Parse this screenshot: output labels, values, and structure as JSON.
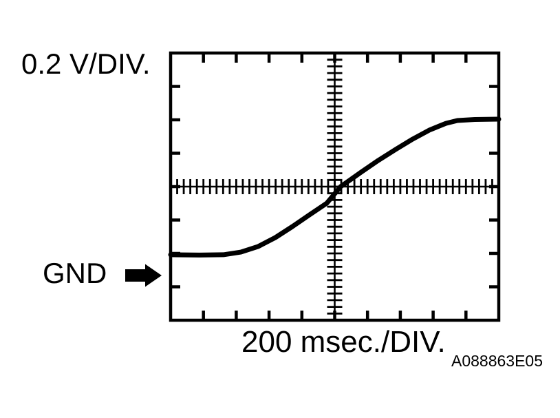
{
  "labels": {
    "volts_per_div": "0.2 V/DIV.",
    "gnd": "GND",
    "time_per_div": "200 msec./DIV.",
    "figure_code": "A088863E05"
  },
  "colors": {
    "ink": "#000000",
    "background": "#ffffff"
  },
  "chart_data": {
    "type": "line",
    "instrument": "oscilloscope",
    "title": "",
    "y_scale_label": "0.2 V/DIV.",
    "x_scale_label": "200 msec./DIV.",
    "volts_per_division": 0.2,
    "msec_per_division": 200,
    "h_divisions": 10,
    "v_divisions": 8,
    "minor_ticks_per_division": 5,
    "grid": "crosshair-graticule-with-edge-ticks",
    "gnd_marker": "arrow at left edge, two divisions below center",
    "low_level_volts": -0.41,
    "high_level_volts": 0.4,
    "x_range_div": [
      0,
      10
    ],
    "y_range_volts": [
      -0.8,
      0.8
    ],
    "waveform": {
      "x_div": [
        0,
        0.88,
        1.61,
        2.14,
        2.66,
        3.19,
        3.71,
        4.23,
        4.76,
        5.18,
        5.81,
        6.33,
        6.86,
        7.38,
        7.9,
        8.39,
        8.74,
        9.27,
        10
      ],
      "volts": [
        -0.408,
        -0.41,
        -0.408,
        -0.392,
        -0.359,
        -0.305,
        -0.239,
        -0.169,
        -0.099,
        0,
        0.087,
        0.157,
        0.223,
        0.285,
        0.34,
        0.379,
        0.396,
        0.402,
        0.404
      ]
    }
  }
}
